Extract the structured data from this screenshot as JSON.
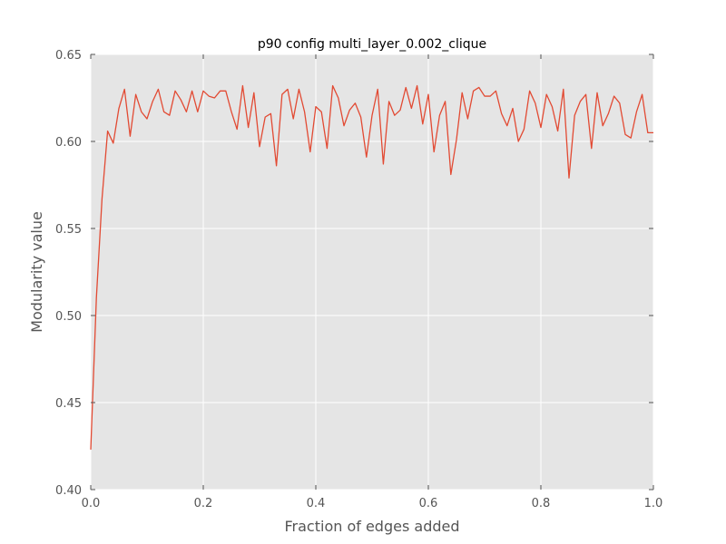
{
  "chart_data": {
    "type": "line",
    "title": "p90 config multi_layer_0.002_clique",
    "xlabel": "Fraction of edges added",
    "ylabel": "Modularity value",
    "xlim": [
      0.0,
      1.0
    ],
    "ylim": [
      0.4,
      0.65
    ],
    "xticks": [
      "0.0",
      "0.2",
      "0.4",
      "0.6",
      "0.8",
      "1.0"
    ],
    "yticks": [
      "0.40",
      "0.45",
      "0.50",
      "0.55",
      "0.60",
      "0.65"
    ],
    "grid": true,
    "legend": "none",
    "series": [
      {
        "color": "#E24A33",
        "x": [
          0.0,
          0.01,
          0.02,
          0.03,
          0.04,
          0.05,
          0.06,
          0.07,
          0.08,
          0.09,
          0.1,
          0.11,
          0.12,
          0.13,
          0.14,
          0.15,
          0.16,
          0.17,
          0.18,
          0.19,
          0.2,
          0.21,
          0.22,
          0.23,
          0.24,
          0.25,
          0.26,
          0.27,
          0.28,
          0.29,
          0.3,
          0.31,
          0.32,
          0.33,
          0.34,
          0.35,
          0.36,
          0.37,
          0.38,
          0.39,
          0.4,
          0.41,
          0.42,
          0.43,
          0.44,
          0.45,
          0.46,
          0.47,
          0.48,
          0.49,
          0.5,
          0.51,
          0.52,
          0.53,
          0.54,
          0.55,
          0.56,
          0.57,
          0.58,
          0.59,
          0.6,
          0.61,
          0.62,
          0.63,
          0.64,
          0.65,
          0.66,
          0.67,
          0.68,
          0.69,
          0.7,
          0.71,
          0.72,
          0.73,
          0.74,
          0.75,
          0.76,
          0.77,
          0.78,
          0.79,
          0.8,
          0.81,
          0.82,
          0.83,
          0.84,
          0.85,
          0.86,
          0.87,
          0.88,
          0.89,
          0.9,
          0.91,
          0.92,
          0.93,
          0.94,
          0.95,
          0.96,
          0.97,
          0.98,
          0.99,
          1.0
        ],
        "y": [
          0.423,
          0.51,
          0.567,
          0.606,
          0.599,
          0.619,
          0.63,
          0.603,
          0.627,
          0.617,
          0.613,
          0.623,
          0.63,
          0.617,
          0.615,
          0.629,
          0.624,
          0.617,
          0.629,
          0.617,
          0.629,
          0.626,
          0.625,
          0.629,
          0.629,
          0.617,
          0.607,
          0.632,
          0.608,
          0.628,
          0.597,
          0.614,
          0.616,
          0.586,
          0.627,
          0.63,
          0.613,
          0.63,
          0.617,
          0.594,
          0.62,
          0.617,
          0.596,
          0.632,
          0.625,
          0.609,
          0.618,
          0.622,
          0.614,
          0.591,
          0.615,
          0.63,
          0.587,
          0.623,
          0.615,
          0.618,
          0.631,
          0.619,
          0.632,
          0.61,
          0.627,
          0.594,
          0.615,
          0.623,
          0.581,
          0.601,
          0.628,
          0.613,
          0.629,
          0.631,
          0.626,
          0.626,
          0.629,
          0.616,
          0.609,
          0.619,
          0.6,
          0.607,
          0.629,
          0.622,
          0.608,
          0.627,
          0.62,
          0.606,
          0.63,
          0.579,
          0.615,
          0.623,
          0.627,
          0.596,
          0.628,
          0.609,
          0.616,
          0.626,
          0.622,
          0.604,
          0.602,
          0.617,
          0.627,
          0.605,
          0.605
        ]
      }
    ]
  }
}
